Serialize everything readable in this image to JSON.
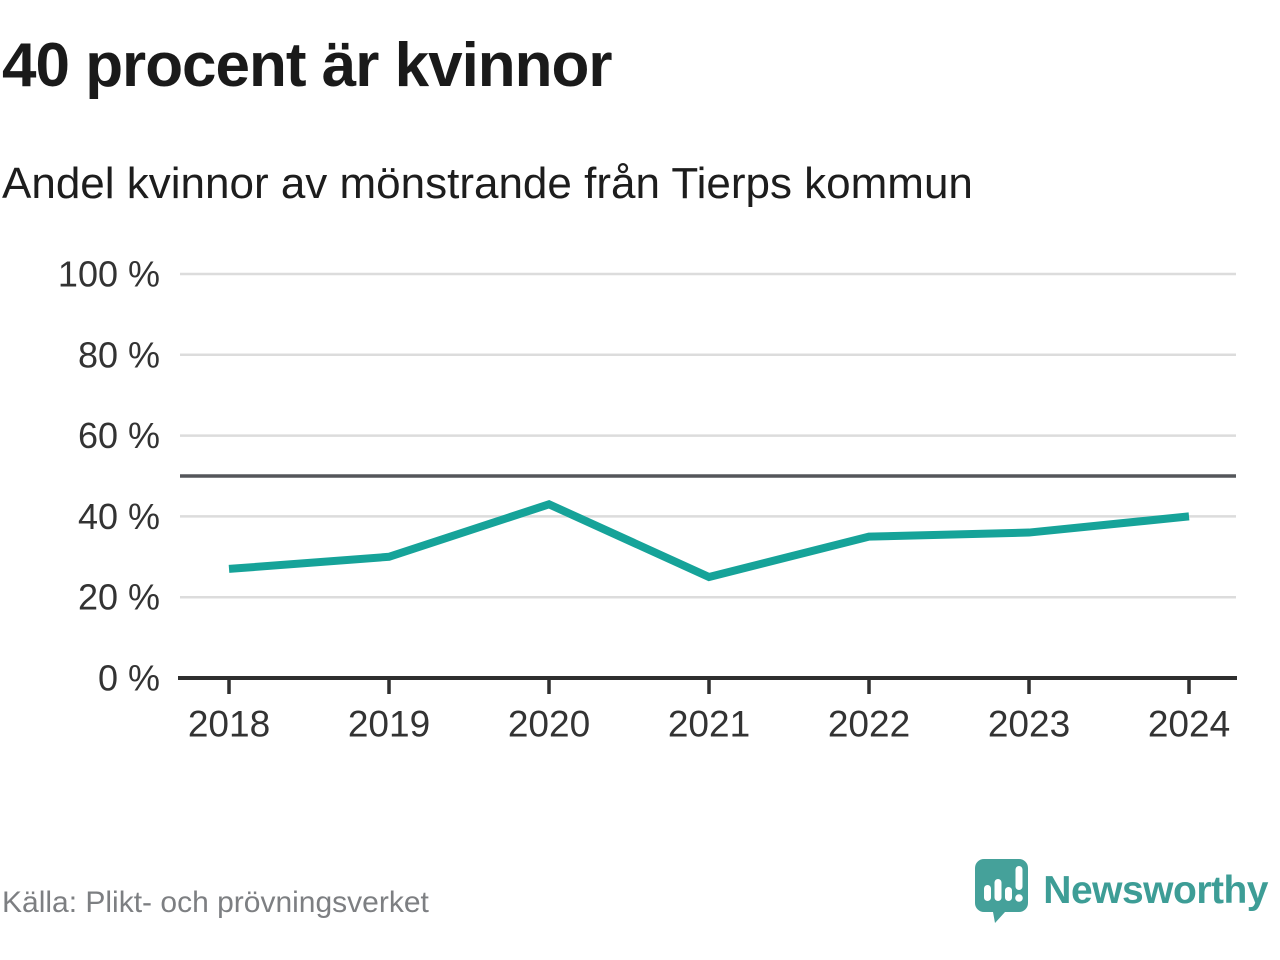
{
  "chart": {
    "title": "40 procent är kvinnor",
    "subtitle": "Andel kvinnor av mönstrande från Tierps kommun",
    "source": "Källa: Plikt- och prövningsverket",
    "brand": {
      "name": "Newsworthy",
      "logo_icon": "speech-bubble-bar-chart-icon"
    }
  },
  "chart_data": {
    "type": "line",
    "title": "40 procent är kvinnor",
    "subtitle": "Andel kvinnor av mönstrande från Tierps kommun",
    "x": [
      2018,
      2019,
      2020,
      2021,
      2022,
      2023,
      2024
    ],
    "x_tick_labels": [
      "2018",
      "2019",
      "2020",
      "2021",
      "2022",
      "2023",
      "2024"
    ],
    "series": [
      {
        "name": "Andel kvinnor av mönstrande",
        "values": [
          27,
          30,
          43,
          25,
          35,
          36,
          40
        ]
      }
    ],
    "unit": "%",
    "ylim": [
      0,
      100
    ],
    "y_ticks": [
      0,
      20,
      40,
      60,
      80,
      100
    ],
    "y_tick_labels": [
      "0 %",
      "20 %",
      "40 %",
      "60 %",
      "80 %",
      "100 %"
    ],
    "reference_line": 50,
    "grid": true,
    "legend": "none",
    "colors": {
      "line": "#16a399",
      "reference_line": "#54565a",
      "grid": "#dcdcdc",
      "axis": "#2e2e2e",
      "tick_label": "#333333"
    }
  }
}
